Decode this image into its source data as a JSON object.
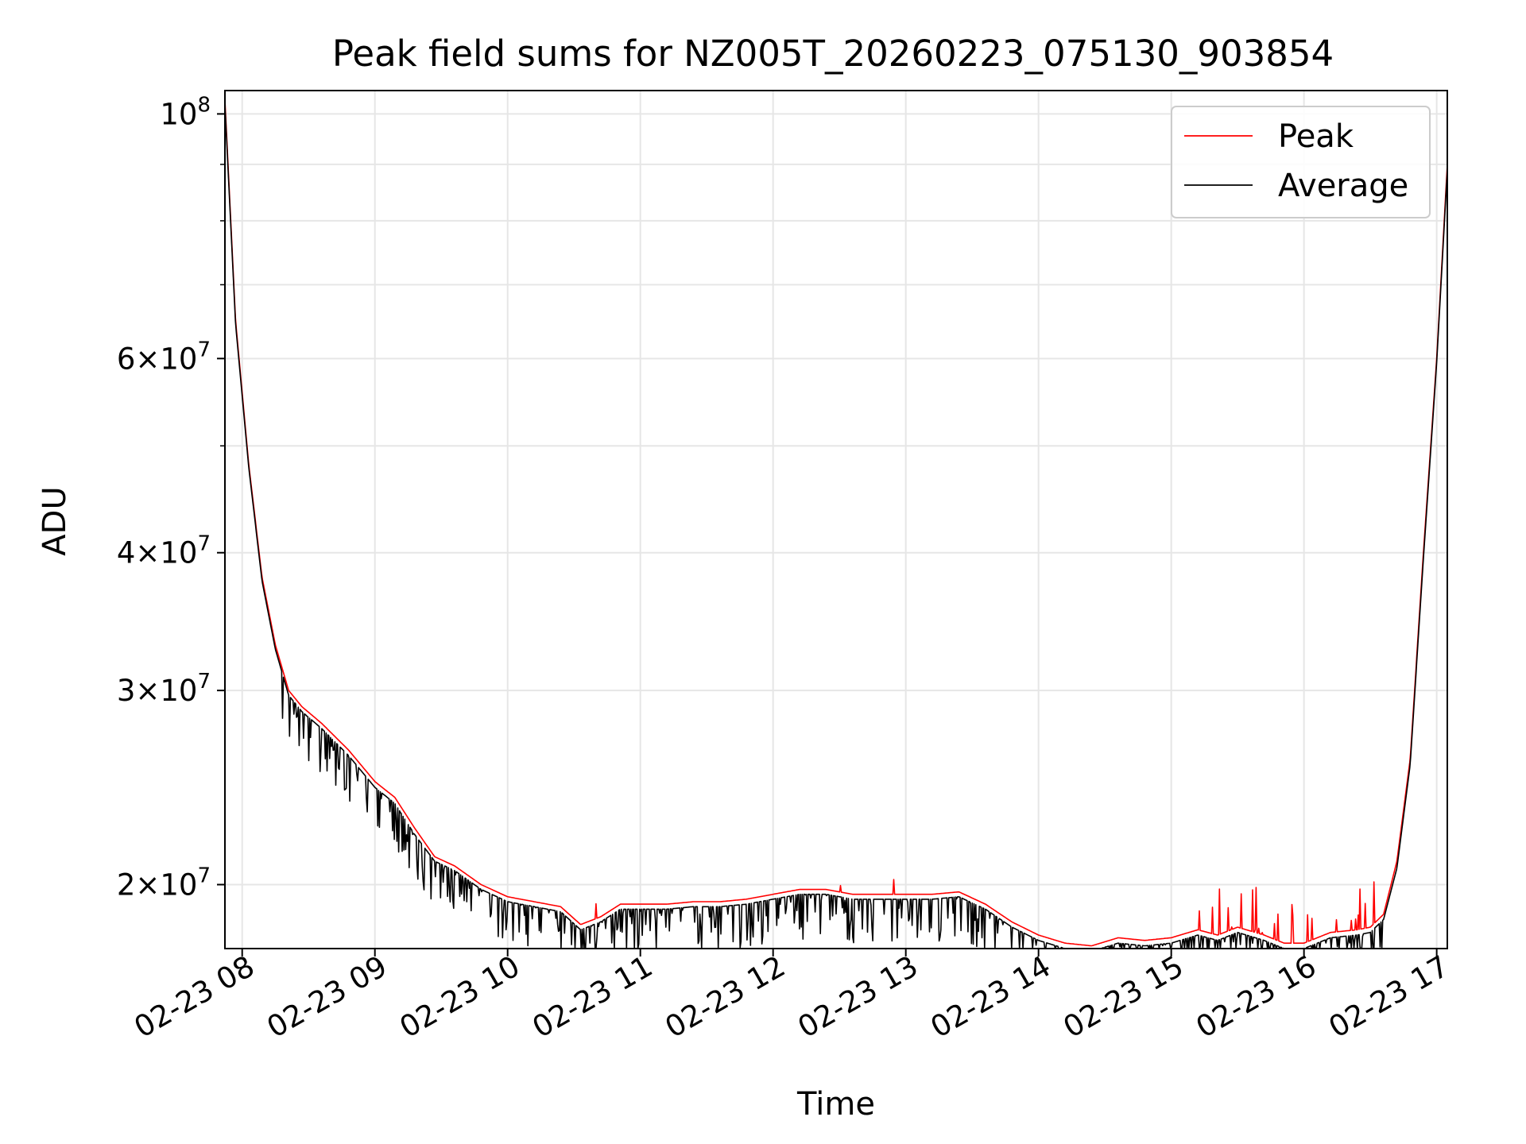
{
  "chart_data": {
    "type": "line",
    "title": "Peak field sums for NZ005T_20260223_075130_903854",
    "xlabel": "Time",
    "ylabel": "ADU",
    "y_scale": "log",
    "ylim": [
      17500000,
      105000000
    ],
    "x_range_hours": [
      7.87,
      17.08
    ],
    "grid": true,
    "legend_position": "upper right",
    "x_ticks": [
      {
        "hour": 8,
        "label": "02-23 08"
      },
      {
        "hour": 9,
        "label": "02-23 09"
      },
      {
        "hour": 10,
        "label": "02-23 10"
      },
      {
        "hour": 11,
        "label": "02-23 11"
      },
      {
        "hour": 12,
        "label": "02-23 12"
      },
      {
        "hour": 13,
        "label": "02-23 13"
      },
      {
        "hour": 14,
        "label": "02-23 14"
      },
      {
        "hour": 15,
        "label": "02-23 15"
      },
      {
        "hour": 16,
        "label": "02-23 16"
      },
      {
        "hour": 17,
        "label": "02-23 17"
      }
    ],
    "y_ticks": [
      {
        "value": 20000000,
        "mantissa": "2",
        "exp": "7"
      },
      {
        "value": 30000000,
        "mantissa": "3",
        "exp": "7"
      },
      {
        "value": 40000000,
        "mantissa": "4",
        "exp": "7"
      },
      {
        "value": 60000000,
        "mantissa": "6",
        "exp": "7"
      },
      {
        "value": 100000000,
        "mantissa": "",
        "exp": "8"
      }
    ],
    "y_minor_ticks": [
      50000000,
      70000000,
      80000000,
      90000000
    ],
    "series": [
      {
        "name": "Peak",
        "color": "#ff0000",
        "x_hours": [
          7.87,
          7.95,
          8.05,
          8.15,
          8.25,
          8.35,
          8.45,
          8.6,
          8.8,
          9.0,
          9.15,
          9.3,
          9.45,
          9.6,
          9.8,
          10.0,
          10.2,
          10.4,
          10.55,
          10.7,
          10.85,
          11.0,
          11.2,
          11.4,
          11.6,
          11.8,
          12.0,
          12.2,
          12.4,
          12.6,
          12.8,
          13.0,
          13.2,
          13.4,
          13.6,
          13.8,
          14.0,
          14.2,
          14.4,
          14.6,
          14.8,
          15.0,
          15.2,
          15.35,
          15.5,
          15.7,
          15.85,
          16.0,
          16.2,
          16.4,
          16.5,
          16.6,
          16.7,
          16.8,
          16.9,
          17.0,
          17.08
        ],
        "values": [
          103000000,
          65000000,
          48000000,
          38000000,
          33000000,
          30000000,
          29000000,
          28000000,
          26500000,
          24800000,
          24000000,
          22500000,
          21200000,
          20800000,
          20000000,
          19500000,
          19300000,
          19100000,
          18400000,
          18700000,
          19200000,
          19200000,
          19200000,
          19300000,
          19300000,
          19400000,
          19600000,
          19800000,
          19800000,
          19600000,
          19600000,
          19600000,
          19600000,
          19700000,
          19200000,
          18500000,
          18000000,
          17700000,
          17600000,
          17900000,
          17800000,
          17900000,
          18200000,
          18000000,
          18300000,
          18000000,
          17700000,
          17700000,
          18100000,
          18200000,
          18300000,
          18800000,
          21000000,
          26000000,
          40000000,
          60000000,
          90000000
        ]
      },
      {
        "name": "Average",
        "color": "#000000",
        "x_hours": [
          7.87,
          7.95,
          8.05,
          8.15,
          8.25,
          8.35,
          8.45,
          8.6,
          8.8,
          9.0,
          9.15,
          9.3,
          9.45,
          9.6,
          9.8,
          10.0,
          10.2,
          10.4,
          10.55,
          10.7,
          10.85,
          11.0,
          11.2,
          11.4,
          11.6,
          11.8,
          12.0,
          12.2,
          12.4,
          12.6,
          12.8,
          13.0,
          13.2,
          13.4,
          13.6,
          13.8,
          14.0,
          14.2,
          14.4,
          14.6,
          14.8,
          15.0,
          15.2,
          15.35,
          15.5,
          15.7,
          15.85,
          16.0,
          16.2,
          16.4,
          16.5,
          16.6,
          16.7,
          16.8,
          16.9,
          17.0,
          17.08
        ],
        "values": [
          102000000,
          64500000,
          47700000,
          37700000,
          32700000,
          29700000,
          28700000,
          27700000,
          26200000,
          24500000,
          23700000,
          22200000,
          21000000,
          20600000,
          19800000,
          19300000,
          19100000,
          18900000,
          18200000,
          18500000,
          19000000,
          19000000,
          19000000,
          19100000,
          19100000,
          19200000,
          19400000,
          19600000,
          19600000,
          19400000,
          19400000,
          19400000,
          19400000,
          19500000,
          19000000,
          18300000,
          17800000,
          17500000,
          17400000,
          17700000,
          17600000,
          17700000,
          18000000,
          17800000,
          18100000,
          17800000,
          17500000,
          17500000,
          17900000,
          18000000,
          18100000,
          18600000,
          20700000,
          25700000,
          39500000,
          59500000,
          89000000
        ]
      }
    ]
  }
}
